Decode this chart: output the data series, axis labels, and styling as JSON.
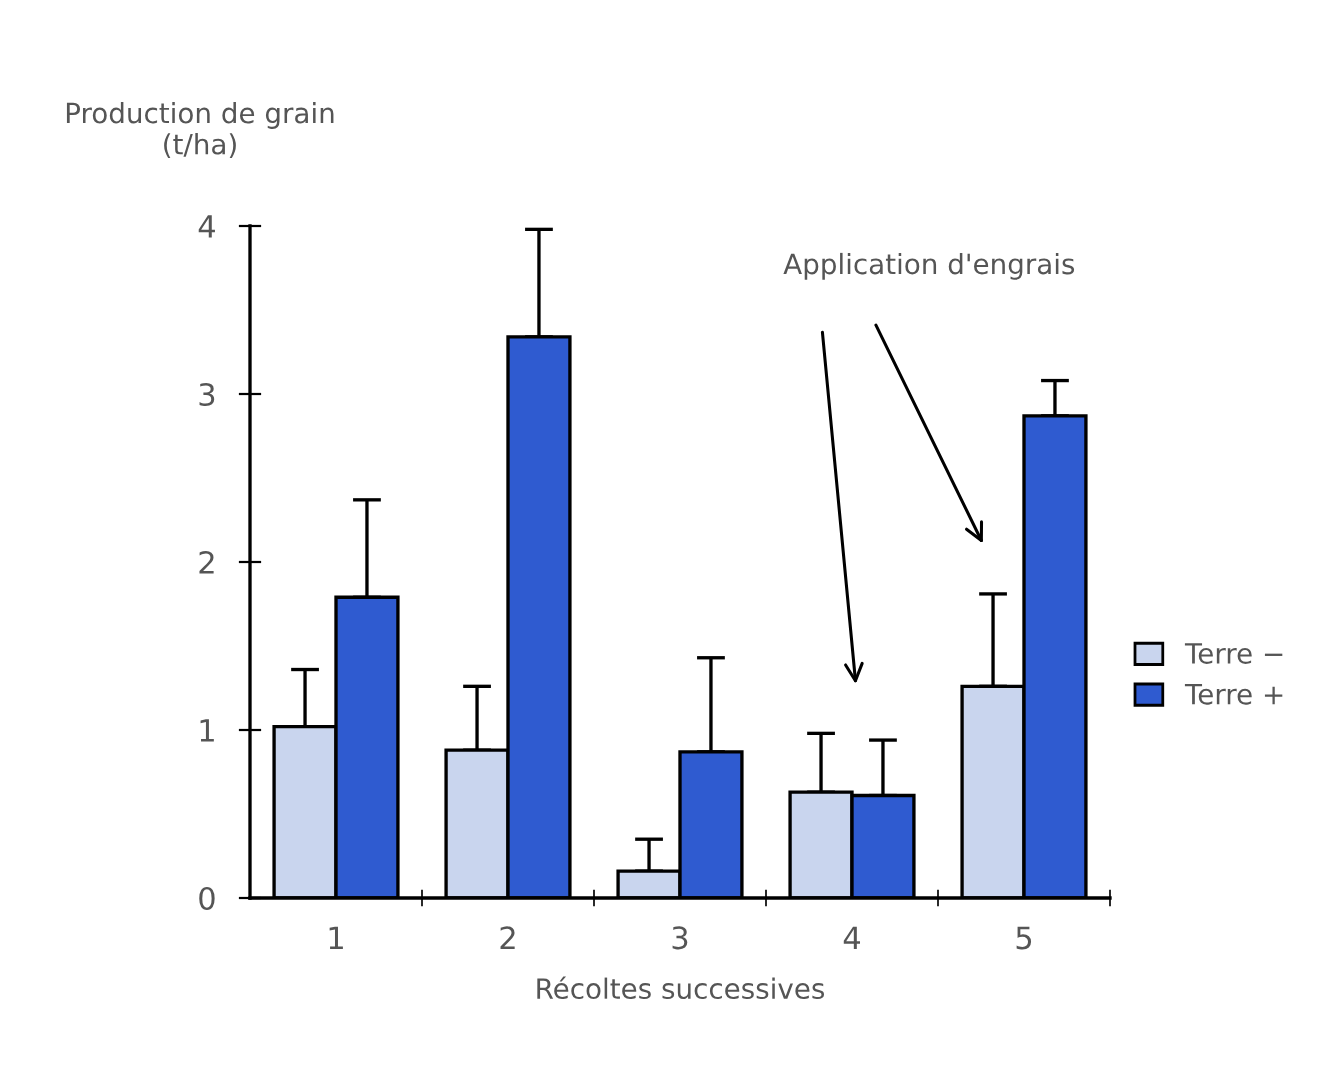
{
  "chart_data": {
    "type": "bar",
    "ylabel": "Production de grain\n(t/ha)",
    "xlabel": "Récoltes successives",
    "categories": [
      "1",
      "2",
      "3",
      "4",
      "5"
    ],
    "series": [
      {
        "name": "Terre −",
        "color": "#c9d5ee",
        "values": [
          1.02,
          0.88,
          0.16,
          0.63,
          1.26
        ],
        "errors": [
          [
            1.02,
            1.36
          ],
          [
            0.88,
            1.26
          ],
          [
            0.16,
            0.35
          ],
          [
            0.63,
            0.98
          ],
          [
            1.26,
            1.81
          ]
        ]
      },
      {
        "name": "Terre +",
        "color": "#2f5bd0",
        "values": [
          1.79,
          3.34,
          0.87,
          0.61,
          2.87
        ],
        "errors": [
          [
            1.79,
            2.37
          ],
          [
            3.34,
            3.98
          ],
          [
            0.87,
            1.43
          ],
          [
            0.61,
            0.94
          ],
          [
            2.87,
            3.08
          ]
        ]
      }
    ],
    "ylim": [
      0,
      4
    ],
    "yticks": [
      0,
      1,
      2,
      3,
      4
    ],
    "annotations": [
      "Application d'engrais"
    ],
    "legend": "right",
    "grid": false
  }
}
